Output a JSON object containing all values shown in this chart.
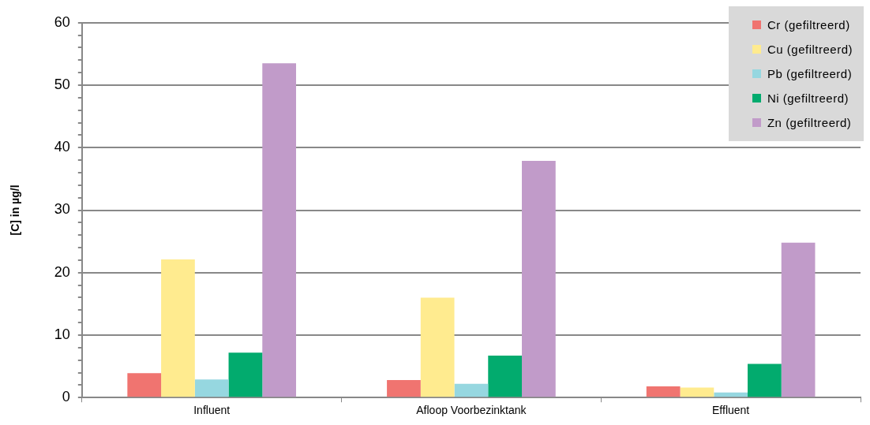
{
  "chart_data": {
    "type": "bar",
    "ylabel": "[C] in µg/l",
    "categories": [
      "Influent",
      "Afloop Voorbezinktank",
      "Effluent"
    ],
    "series": [
      {
        "name": "Cr (gefiltreerd)",
        "color": "#f07470",
        "values": [
          3.9,
          2.8,
          1.8
        ]
      },
      {
        "name": "Cu (gefiltreerd)",
        "color": "#ffeb8f",
        "values": [
          22.1,
          16.0,
          1.6
        ]
      },
      {
        "name": "Pb (gefiltreerd)",
        "color": "#96d7e0",
        "values": [
          2.9,
          2.2,
          0.8
        ]
      },
      {
        "name": "Ni (gefiltreerd)",
        "color": "#02ab6e",
        "values": [
          7.2,
          6.7,
          5.4
        ]
      },
      {
        "name": "Zn (gefiltreerd)",
        "color": "#c19bc9",
        "values": [
          53.5,
          37.9,
          24.8
        ]
      }
    ],
    "ylim": [
      0,
      60
    ],
    "yticks": [
      0,
      {
        "value": 2,
        "label": null
      },
      {
        "value": 4,
        "label": null
      },
      {
        "value": 6,
        "label": null
      },
      {
        "value": 8,
        "label": null
      },
      10,
      {
        "value": 12,
        "label": null
      },
      {
        "value": 14,
        "label": null
      },
      {
        "value": 16,
        "label": null
      },
      {
        "value": 18,
        "label": null
      },
      20,
      {
        "value": 22,
        "label": null
      },
      {
        "value": 24,
        "label": null
      },
      {
        "value": 26,
        "label": null
      },
      {
        "value": 28,
        "label": null
      },
      30,
      {
        "value": 32,
        "label": null
      },
      {
        "value": 34,
        "label": null
      },
      {
        "value": 36,
        "label": null
      },
      {
        "value": 38,
        "label": null
      },
      40,
      {
        "value": 42,
        "label": null
      },
      {
        "value": 44,
        "label": null
      },
      {
        "value": 46,
        "label": null
      },
      {
        "value": 48,
        "label": null
      },
      50,
      {
        "value": 52,
        "label": null
      },
      {
        "value": 54,
        "label": null
      },
      {
        "value": 56,
        "label": null
      },
      {
        "value": 58,
        "label": null
      },
      60
    ],
    "grid": "y",
    "legend": "top right"
  }
}
